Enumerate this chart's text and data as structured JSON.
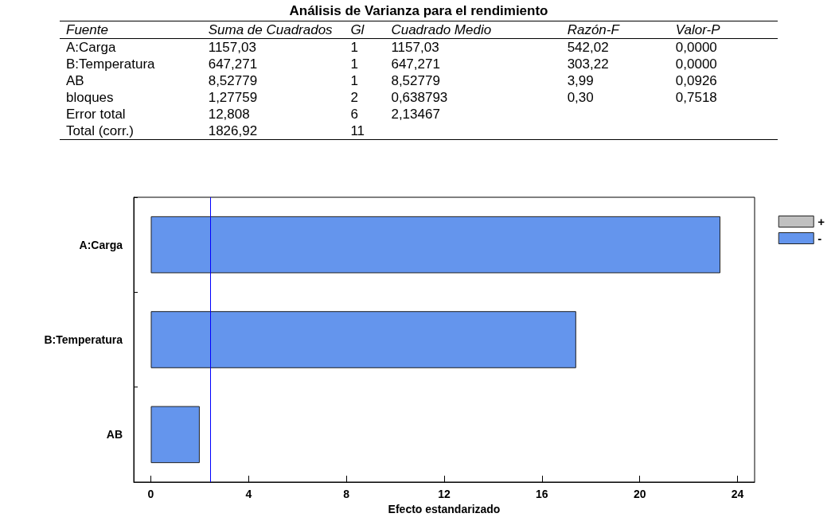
{
  "chart_data": [
    {
      "type": "other",
      "title": "Análisis de Varianza para el rendimiento",
      "categories": [
        "Fuente",
        "Suma de Cuadrados",
        "Gl",
        "Cuadrado Medio",
        "Razón-F",
        "Valor-P"
      ],
      "y_categories": [
        "A:Carga",
        "B:Temperatura",
        "AB",
        "bloques",
        "Error total",
        "Total (corr.)"
      ],
      "cell_labels": [
        [
          "1157,03",
          "1",
          "1157,03",
          "542,02",
          "0,0000"
        ],
        [
          "647,271",
          "1",
          "647,271",
          "303,22",
          "0,0000"
        ],
        [
          "8,52779",
          "1",
          "8,52779",
          "3,99",
          "0,0926"
        ],
        [
          "1,27759",
          "2",
          "0,638793",
          "0,30",
          "0,7518"
        ],
        [
          "12,808",
          "6",
          "2,13467",
          null,
          null
        ],
        [
          "1826,92",
          "11",
          null,
          null,
          null
        ]
      ]
    },
    {
      "type": "bar",
      "orientation": "horizontal",
      "xlabel": "Efecto estandarizado",
      "categories": [
        "A:Carga",
        "B:Temperatura",
        "AB"
      ],
      "series": [
        {
          "name": "+",
          "color": "#c0c0c0",
          "values": [
            null,
            null,
            null
          ]
        },
        {
          "name": "-",
          "color": "#6495ed",
          "values": [
            23.3,
            17.4,
            2.0
          ]
        }
      ],
      "xlim": [
        -0.7,
        24.7
      ],
      "xticks": [
        0,
        4,
        8,
        12,
        16,
        20,
        24
      ],
      "ref_lines": [
        {
          "axis": "x",
          "value": 2.45,
          "color": "#0000ff"
        }
      ],
      "legend": "top right",
      "grid": false
    }
  ]
}
